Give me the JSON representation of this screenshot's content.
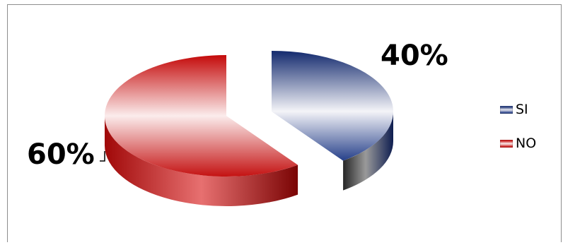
{
  "chart_data": {
    "type": "pie",
    "title": "",
    "categories": [
      "SI",
      "NO"
    ],
    "values": [
      40,
      60
    ],
    "data_labels": [
      "40%",
      "60%"
    ],
    "colors": {
      "SI": "#1f3a80",
      "NO": "#c40a0a"
    },
    "legend_position": "right",
    "style": "3d-exploded"
  }
}
